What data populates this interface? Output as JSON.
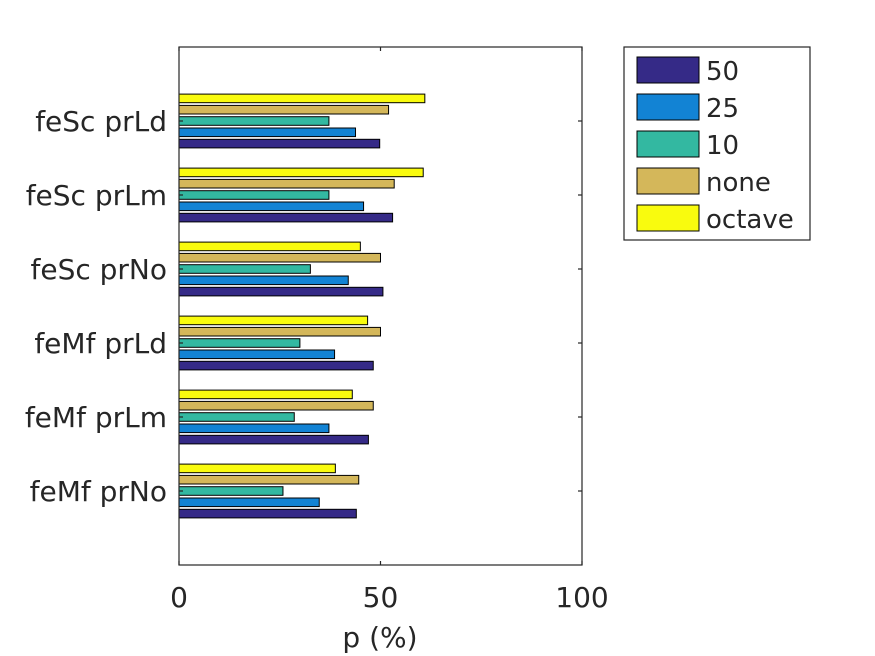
{
  "chart_data": {
    "type": "bar",
    "orientation": "horizontal",
    "categories": [
      "feSc prLd",
      "feSc prLm",
      "feSc prNo",
      "feMf prLd",
      "feMf prLm",
      "feMf prNo"
    ],
    "series": [
      {
        "name": "50",
        "color": "#352a87",
        "values": [
          49.8,
          53.0,
          50.6,
          48.2,
          47.0,
          44.0
        ]
      },
      {
        "name": "25",
        "color": "#1283d4",
        "values": [
          43.8,
          45.8,
          42.0,
          38.6,
          37.2,
          34.8
        ]
      },
      {
        "name": "10",
        "color": "#33b8a1",
        "values": [
          37.2,
          37.2,
          32.6,
          30.0,
          28.6,
          25.8
        ]
      },
      {
        "name": "none",
        "color": "#d4b75a",
        "values": [
          52.0,
          53.4,
          50.0,
          50.0,
          48.2,
          44.6
        ]
      },
      {
        "name": "octave",
        "color": "#f9fb0e",
        "values": [
          61.0,
          60.6,
          45.0,
          46.8,
          43.0,
          38.8
        ]
      }
    ],
    "title": "",
    "xlabel": "p (%)",
    "ylabel": "",
    "xlim": [
      0,
      100
    ],
    "xticks": [
      "0",
      "50",
      "100"
    ],
    "grid": false,
    "legend_position": "outside-top-right"
  }
}
